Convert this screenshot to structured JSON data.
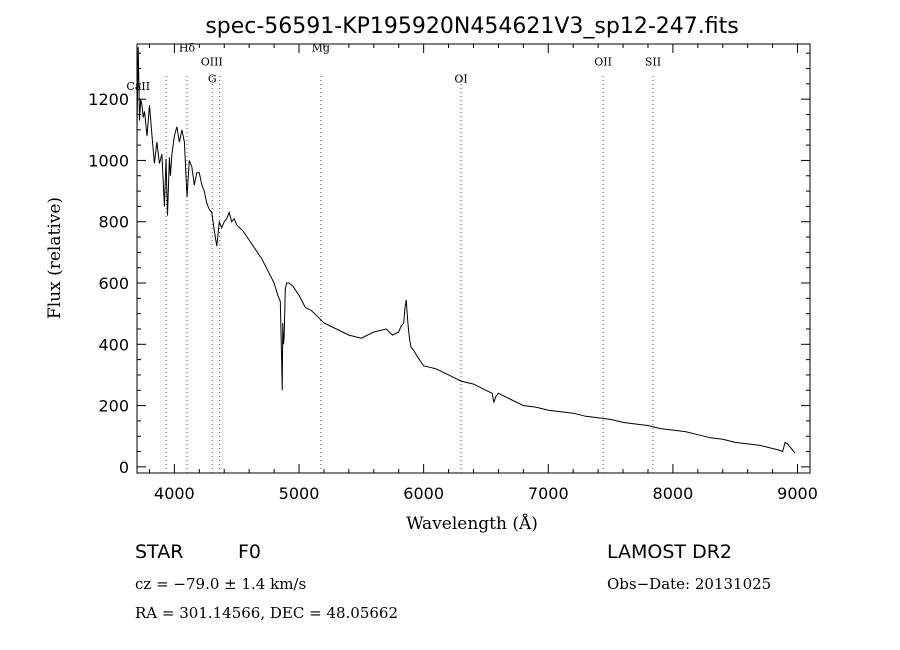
{
  "chart_data": {
    "type": "line",
    "title": "spec-56591-KP195920N454621V3_sp12-247.fits",
    "xlabel": "Wavelength (Å)",
    "ylabel": "Flux (relative)",
    "xlim": [
      3700,
      9100
    ],
    "ylim": [
      -20,
      1380
    ],
    "xticks": [
      4000,
      5000,
      6000,
      7000,
      8000,
      9000
    ],
    "yticks": [
      0,
      200,
      400,
      600,
      800,
      1000,
      1200
    ],
    "grid": false,
    "series": [
      {
        "x": [
          3700,
          3710,
          3715,
          3720,
          3730,
          3740,
          3750,
          3760,
          3780,
          3800,
          3820,
          3840,
          3860,
          3880,
          3900,
          3920,
          3933,
          3945,
          3960,
          3968,
          3980,
          4000,
          4020,
          4040,
          4060,
          4080,
          4101,
          4120,
          4140,
          4160,
          4180,
          4200,
          4220,
          4240,
          4260,
          4280,
          4300,
          4320,
          4340,
          4350,
          4360,
          4380,
          4400,
          4420,
          4440,
          4460,
          4480,
          4500,
          4550,
          4600,
          4650,
          4700,
          4750,
          4800,
          4830,
          4850,
          4861,
          4865,
          4870,
          4875,
          4880,
          4890,
          4900,
          4920,
          4950,
          5000,
          5050,
          5100,
          5150,
          5200,
          5300,
          5400,
          5500,
          5600,
          5700,
          5750,
          5800,
          5820,
          5840,
          5850,
          5860,
          5870,
          5880,
          5890,
          5900,
          5920,
          5950,
          6000,
          6100,
          6200,
          6300,
          6400,
          6500,
          6550,
          6563,
          6580,
          6600,
          6700,
          6800,
          6900,
          7000,
          7100,
          7200,
          7300,
          7400,
          7500,
          7600,
          7700,
          7800,
          7900,
          8000,
          8100,
          8200,
          8300,
          8400,
          8500,
          8600,
          8700,
          8800,
          8850,
          8880,
          8900,
          8920,
          8950,
          8980
        ],
        "y": [
          1100,
          1370,
          1250,
          1130,
          1200,
          1180,
          1140,
          1160,
          1080,
          1180,
          1080,
          990,
          1060,
          990,
          1020,
          850,
          1005,
          820,
          1010,
          950,
          1020,
          1080,
          1110,
          1060,
          1100,
          1060,
          880,
          1000,
          980,
          920,
          960,
          960,
          920,
          900,
          860,
          840,
          830,
          770,
          720,
          760,
          800,
          780,
          800,
          810,
          830,
          800,
          810,
          790,
          770,
          740,
          710,
          680,
          640,
          600,
          560,
          540,
          340,
          250,
          470,
          400,
          420,
          580,
          600,
          600,
          590,
          560,
          520,
          510,
          490,
          470,
          450,
          430,
          420,
          440,
          450,
          430,
          440,
          460,
          470,
          520,
          545,
          490,
          440,
          410,
          390,
          380,
          360,
          330,
          320,
          300,
          280,
          270,
          250,
          240,
          210,
          230,
          240,
          220,
          200,
          195,
          185,
          180,
          175,
          165,
          160,
          155,
          145,
          140,
          135,
          125,
          120,
          115,
          105,
          95,
          90,
          80,
          75,
          70,
          60,
          55,
          50,
          80,
          75,
          60,
          45
        ]
      }
    ],
    "annotations": [
      {
        "label": "CaII",
        "x": 3710,
        "y": 1230
      },
      {
        "label": "Hδ",
        "x": 4101,
        "y": 1355
      },
      {
        "label": "OIII",
        "x": 4300,
        "y": 1310
      },
      {
        "label": "G",
        "x": 4304,
        "y": 1255
      },
      {
        "label": "Mg",
        "x": 5175,
        "y": 1355
      },
      {
        "label": "OI",
        "x": 6300,
        "y": 1255
      },
      {
        "label": "OII",
        "x": 7440,
        "y": 1310
      },
      {
        "label": "SII",
        "x": 7840,
        "y": 1310
      }
    ],
    "line_markers": [
      3934,
      4101,
      4304,
      4363,
      5175,
      6300,
      7440,
      7840
    ]
  },
  "info": {
    "class": "STAR",
    "subclass": "F0",
    "survey": "LAMOST DR2",
    "cz": "cz = −79.0 ± 1.4 km/s",
    "obs_date": "Obs−Date: 20131025",
    "radec": "RA = 301.14566, DEC =  48.05662"
  }
}
